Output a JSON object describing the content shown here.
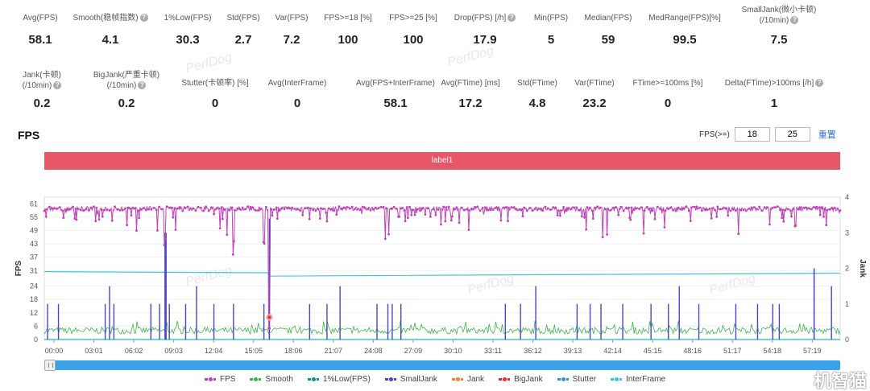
{
  "stats_row1": [
    {
      "label": "Avg(FPS)",
      "value": "58.1",
      "help": false
    },
    {
      "label": "Smooth(稳帧指数)",
      "value": "4.1",
      "help": true
    },
    {
      "label": "1%Low(FPS)",
      "value": "30.3",
      "help": false
    },
    {
      "label": "Std(FPS)",
      "value": "2.7",
      "help": false
    },
    {
      "label": "Var(FPS)",
      "value": "7.2",
      "help": false
    },
    {
      "label": "FPS>=18 [%]",
      "value": "100",
      "help": false
    },
    {
      "label": "FPS>=25 [%]",
      "value": "100",
      "help": false
    },
    {
      "label": "Drop(FPS) [/h]",
      "value": "17.9",
      "help": true
    },
    {
      "label": "Min(FPS)",
      "value": "5",
      "help": false
    },
    {
      "label": "Median(FPS)",
      "value": "59",
      "help": false
    },
    {
      "label": "MedRange(FPS)[%]",
      "value": "99.5",
      "help": false
    },
    {
      "label": "SmallJank(微小卡顿)",
      "label2": "(/10min)",
      "value": "7.5",
      "help": true
    }
  ],
  "stats_row2": [
    {
      "label": "Jank(卡顿)",
      "label2": "(/10min)",
      "value": "0.2",
      "help": true
    },
    {
      "label": "BigJank(严重卡顿)",
      "label2": "(/10min)",
      "value": "0.2",
      "help": true
    },
    {
      "label": "Stutter(卡顿率) [%]",
      "value": "0",
      "help": false
    },
    {
      "label": "Avg(InterFrame)",
      "value": "0",
      "help": false
    },
    {
      "label": "Avg(FPS+InterFrame)",
      "value": "58.1",
      "help": false
    },
    {
      "label": "Avg(FTime) [ms]",
      "value": "17.2",
      "help": false
    },
    {
      "label": "Std(FTime)",
      "value": "4.8",
      "help": false
    },
    {
      "label": "Var(FTime)",
      "value": "23.2",
      "help": false
    },
    {
      "label": "FTime>=100ms [%]",
      "value": "0",
      "help": false
    },
    {
      "label": "Delta(FTime)>100ms [/h]",
      "value": "1",
      "help": true
    }
  ],
  "watermark_text": "PerfDog",
  "fps_section": {
    "title": "FPS",
    "filter_label": "FPS(>=)",
    "filter_value_1": "18",
    "filter_value_2": "25",
    "reset_label": "重置",
    "label_bar": "label1"
  },
  "brand": "机智猫",
  "colors": {
    "fps": "#c040b8",
    "smooth": "#3cb44b",
    "low1": "#1a8f8a",
    "smalljank": "#4a46c8",
    "jank": "#f08030",
    "bigjank": "#e03030",
    "stutter": "#3a8de0",
    "interframe": "#3ec7d8",
    "label_bar": "#e85768"
  },
  "chart_data": {
    "type": "line",
    "ylabel": "FPS",
    "ylabel_right": "Jank",
    "y_ticks": [
      0,
      6,
      12,
      18,
      24,
      31,
      37,
      43,
      49,
      55,
      61
    ],
    "y_right_ticks": [
      0,
      1,
      2,
      3,
      4
    ],
    "x_ticks": [
      "00:00",
      "03:01",
      "06:02",
      "09:03",
      "12:04",
      "15:05",
      "18:06",
      "21:07",
      "24:08",
      "27:09",
      "30:10",
      "33:11",
      "36:12",
      "39:13",
      "42:14",
      "45:15",
      "48:16",
      "51:17",
      "54:18",
      "57:19"
    ],
    "duration_s": 3660,
    "series": [
      {
        "name": "FPS",
        "typical_value": 59,
        "typical_low": 53,
        "min": 5,
        "min_at_s": 1035,
        "low_dips_s": [
          520,
          555,
          840,
          870,
          1010,
          1035
        ]
      },
      {
        "name": "Smooth",
        "typical_value": 4
      },
      {
        "name": "1%Low(FPS)",
        "start_value": 30.5,
        "drop_at_s": 1035,
        "after_value": 28.5,
        "end_value": 29.8
      },
      {
        "name": "SmallJank",
        "spike_times_s": [
          15,
          65,
          280,
          300,
          320,
          490,
          530,
          555,
          575,
          650,
          700,
          780,
          870,
          1010,
          1035,
          1220,
          1300,
          1360,
          1530,
          1580,
          1600,
          1640,
          2120,
          2190,
          2260,
          2450,
          2510,
          2560,
          2660,
          2790,
          2870,
          2920,
          3010,
          3180,
          3280,
          3350,
          3380,
          3540,
          3620
        ],
        "spike_values": [
          1,
          1,
          1,
          1,
          1,
          1,
          1,
          3,
          1,
          1,
          1,
          1,
          1,
          1,
          1,
          1,
          1,
          1,
          1,
          1,
          1,
          1,
          1,
          1,
          1,
          1,
          1,
          1,
          1,
          1,
          1,
          1,
          1,
          1,
          1,
          1,
          1,
          2,
          1
        ]
      },
      {
        "name": "Jank",
        "events_s": [
          1035
        ]
      },
      {
        "name": "BigJank",
        "events_s": [
          1035
        ]
      },
      {
        "name": "Stutter",
        "value": 0
      },
      {
        "name": "InterFrame",
        "value": 0
      }
    ]
  }
}
